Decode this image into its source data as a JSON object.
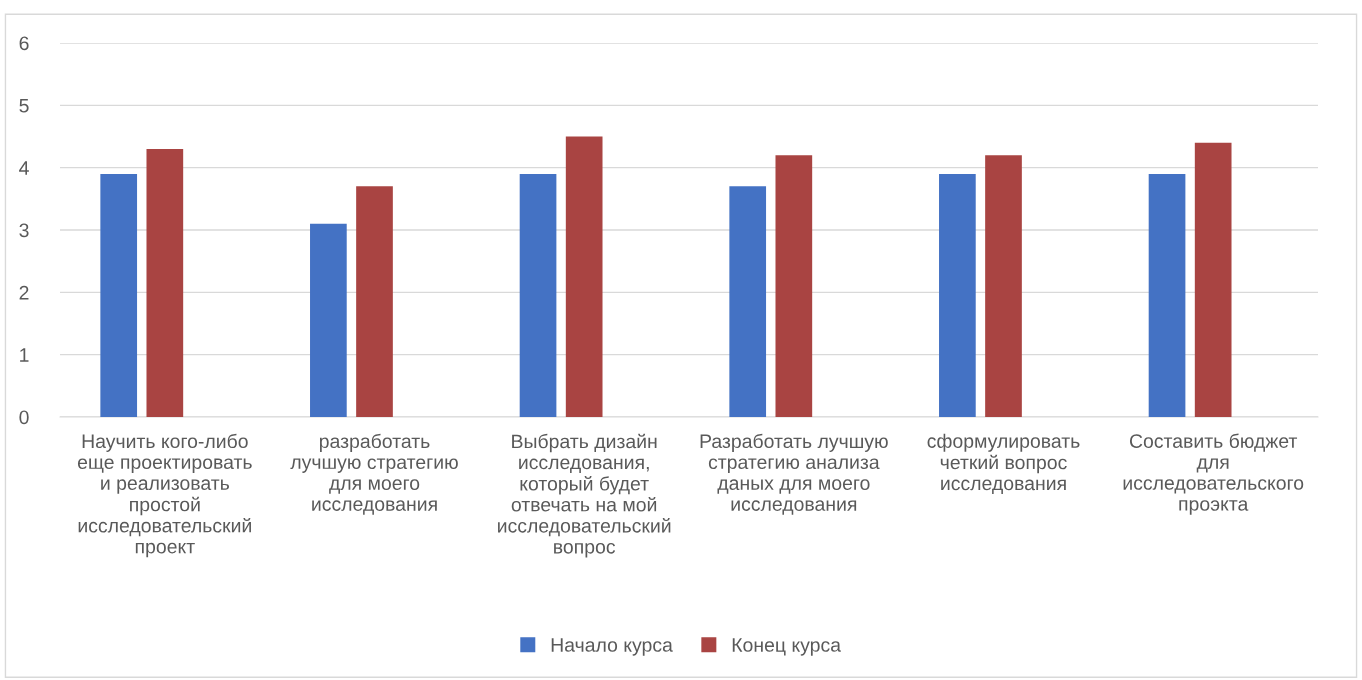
{
  "chart_data": {
    "type": "bar",
    "categories": [
      "Научить кого-либо\nеще проектировать\nи реализовать\nпростой\nисследовательский\nпроект",
      "разработать\nлучшую стратегию\nдля моего\nисследования",
      "Выбрать дизайн\nисследования,\nкоторый будет\nотвечать на мой\nисследовательский\nвопрос",
      "Разработать лучшую\nстратегию анализа\nданых для моего\nисследования",
      "сформулировать\nчеткий вопрос\nисследования",
      "Составить бюджет\nдля\nисследовательского\nпроэкта"
    ],
    "series": [
      {
        "name": "Начало курса",
        "color": "#4472c4",
        "values": [
          3.9,
          3.1,
          3.9,
          3.7,
          3.9,
          3.9
        ]
      },
      {
        "name": "Конец курса",
        "color": "#a94442",
        "values": [
          4.3,
          3.7,
          4.5,
          4.2,
          4.2,
          4.4
        ]
      }
    ],
    "ylim": [
      0,
      6
    ],
    "yticks": [
      0,
      1,
      2,
      3,
      4,
      5,
      6
    ],
    "grid": "y",
    "legend": "bottom"
  }
}
